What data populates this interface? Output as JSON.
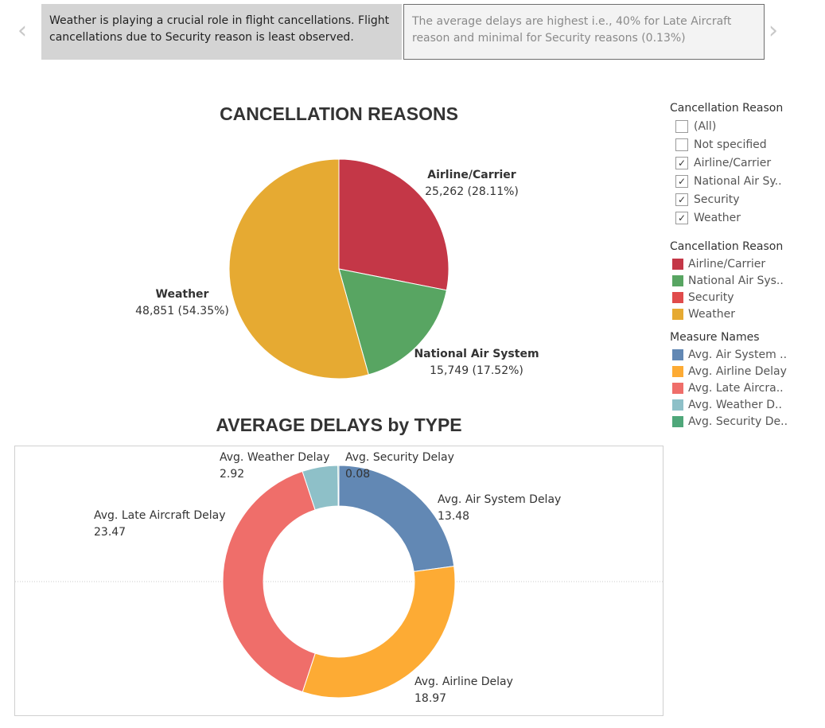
{
  "story": {
    "points": [
      {
        "text": "Weather is playing a crucial role in flight cancellations.  Flight cancellations due to Security reason is least observed."
      },
      {
        "text": "The average delays are highest i.e., 40% for Late Aircraft reason and minimal for Security reasons (0.13%)"
      }
    ],
    "prev_glyph": "‹",
    "next_glyph": "›"
  },
  "filter": {
    "title": "Cancellation Reason",
    "items": [
      {
        "label": "(All)",
        "checked": false,
        "mark": ""
      },
      {
        "label": "Not specified",
        "checked": false,
        "mark": ""
      },
      {
        "label": "Airline/Carrier",
        "checked": true,
        "mark": "✓"
      },
      {
        "label": "National Air Sy..",
        "checked": true,
        "mark": "✓"
      },
      {
        "label": "Security",
        "checked": true,
        "mark": "✓"
      },
      {
        "label": "Weather",
        "checked": true,
        "mark": "✓"
      }
    ]
  },
  "reason_legend": {
    "title": "Cancellation Reason",
    "items": [
      {
        "label": "Airline/Carrier",
        "color": "#c43747"
      },
      {
        "label": "National Air Sys..",
        "color": "#58a562"
      },
      {
        "label": "Security",
        "color": "#e04b4b"
      },
      {
        "label": "Weather",
        "color": "#e6aa32"
      }
    ]
  },
  "measure_legend": {
    "title": "Measure Names",
    "items": [
      {
        "label": "Avg. Air System ..",
        "color": "#6288b4"
      },
      {
        "label": "Avg. Airline Delay",
        "color": "#fdab34"
      },
      {
        "label": "Avg. Late Aircra..",
        "color": "#ef6e6a"
      },
      {
        "label": "Avg. Weather D..",
        "color": "#8ec0c8"
      },
      {
        "label": "Avg. Security De..",
        "color": "#4fa77a"
      }
    ]
  },
  "chart_data": [
    {
      "type": "pie",
      "title": "CANCELLATION REASONS",
      "categories": [
        "Airline/Carrier",
        "National Air System",
        "Weather"
      ],
      "values": [
        25262,
        15749,
        48851
      ],
      "labels": [
        {
          "name": "Airline/Carrier",
          "value_text": "25,262 (28.11%)"
        },
        {
          "name": "National Air System",
          "value_text": "15,749 (17.52%)"
        },
        {
          "name": "Weather",
          "value_text": "48,851 (54.35%)"
        }
      ],
      "colors": [
        "#c43747",
        "#58a562",
        "#e6aa32"
      ],
      "start": "12 o'clock",
      "direction": "clockwise"
    },
    {
      "type": "pie",
      "title": "AVERAGE DELAYS by TYPE",
      "donut": true,
      "categories": [
        "Avg. Air System Delay",
        "Avg. Airline Delay",
        "Avg. Late Aircraft Delay",
        "Avg. Weather Delay",
        "Avg. Security Delay"
      ],
      "values": [
        13.48,
        18.97,
        23.47,
        2.92,
        0.08
      ],
      "labels": [
        {
          "name": "Avg. Air System Delay",
          "value_text": "13.48"
        },
        {
          "name": "Avg. Airline Delay",
          "value_text": "18.97"
        },
        {
          "name": "Avg. Late Aircraft Delay",
          "value_text": "23.47"
        },
        {
          "name": "Avg. Weather Delay",
          "value_text": "2.92"
        },
        {
          "name": "Avg. Security Delay",
          "value_text": "0.08"
        }
      ],
      "colors": [
        "#6288b4",
        "#fdab34",
        "#ef6e6a",
        "#8ec0c8",
        "#4fa77a"
      ],
      "start": "12 o'clock",
      "direction": "clockwise"
    }
  ]
}
